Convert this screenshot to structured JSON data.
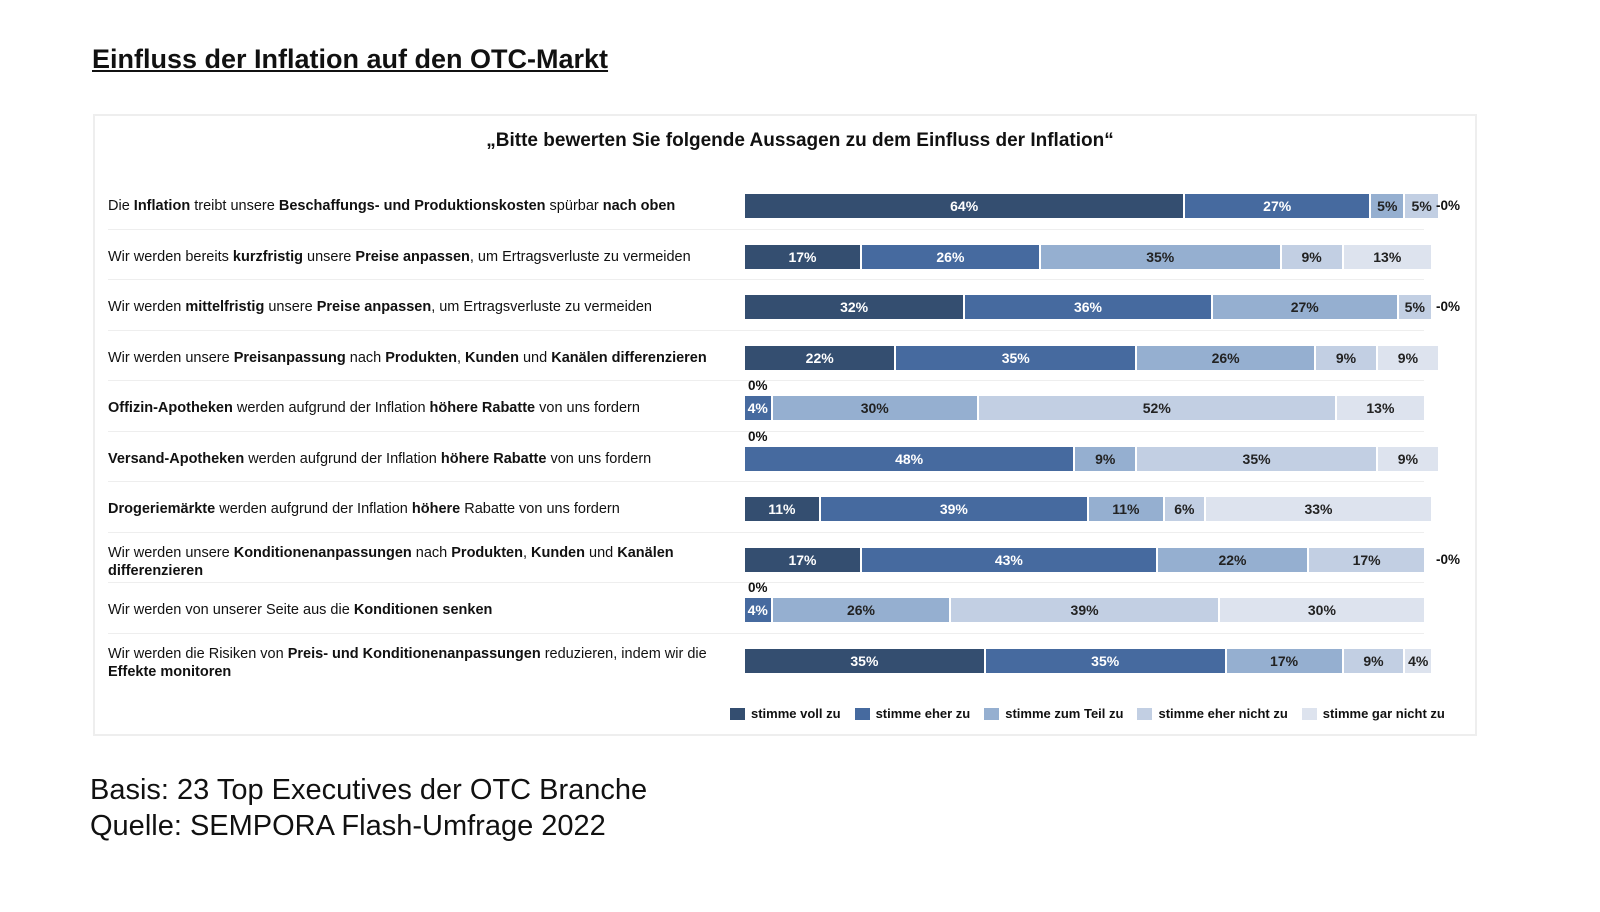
{
  "title": "Einfluss der Inflation auf den OTC-Markt",
  "footer": {
    "basis": "Basis: 23 Top Executives der OTC Branche",
    "source": "Quelle: SEMPORA Flash-Umfrage 2022"
  },
  "chart_data": {
    "type": "bar",
    "stacked": true,
    "orientation": "horizontal",
    "title": "„Bitte bewerten Sie folgende Aussagen zu dem Einfluss der Inflation“",
    "xlim": [
      0,
      100
    ],
    "legend_position": "bottom",
    "colors": [
      "#344e70",
      "#466a9f",
      "#95afd0",
      "#c2cfe3",
      "#dde3ee"
    ],
    "legend": [
      "stimme voll zu",
      "stimme eher zu",
      "stimme zum Teil zu",
      "stimme eher nicht zu",
      "stimme gar nicht zu"
    ],
    "categories": [
      [
        {
          "t": "Die "
        },
        {
          "t": "Inflation",
          "b": 1
        },
        {
          "t": " treibt unsere "
        },
        {
          "t": "Beschaffungs- und Produktionskosten",
          "b": 1
        },
        {
          "t": " spürbar "
        },
        {
          "t": "nach oben",
          "b": 1
        }
      ],
      [
        {
          "t": "Wir werden bereits "
        },
        {
          "t": "kurzfristig",
          "b": 1
        },
        {
          "t": " unsere "
        },
        {
          "t": "Preise anpassen",
          "b": 1
        },
        {
          "t": ", um Ertragsverluste zu vermeiden"
        }
      ],
      [
        {
          "t": "Wir werden "
        },
        {
          "t": "mittelfristig",
          "b": 1
        },
        {
          "t": " unsere "
        },
        {
          "t": "Preise anpassen",
          "b": 1
        },
        {
          "t": ", um Ertragsverluste zu vermeiden"
        }
      ],
      [
        {
          "t": "Wir werden unsere "
        },
        {
          "t": "Preisanpassung",
          "b": 1
        },
        {
          "t": " nach "
        },
        {
          "t": "Produkten",
          "b": 1
        },
        {
          "t": ", "
        },
        {
          "t": "Kunden",
          "b": 1
        },
        {
          "t": " und "
        },
        {
          "t": "Kanälen differenzieren",
          "b": 1
        }
      ],
      [
        {
          "t": "Offizin-Apotheken",
          "b": 1
        },
        {
          "t": " werden aufgrund der Inflation "
        },
        {
          "t": "höhere Rabatte",
          "b": 1
        },
        {
          "t": " von uns fordern"
        }
      ],
      [
        {
          "t": "Versand-Apotheken",
          "b": 1
        },
        {
          "t": " werden aufgrund der Inflation "
        },
        {
          "t": "höhere Rabatte",
          "b": 1
        },
        {
          "t": " von uns fordern"
        }
      ],
      [
        {
          "t": "Drogeriemärkte",
          "b": 1
        },
        {
          "t": " werden aufgrund der Inflation "
        },
        {
          "t": "höhere",
          "b": 1
        },
        {
          "t": " Rabatte von uns fordern"
        }
      ],
      [
        {
          "t": "Wir werden unsere "
        },
        {
          "t": "Konditionenanpassungen",
          "b": 1
        },
        {
          "t": " nach "
        },
        {
          "t": "Produkten",
          "b": 1
        },
        {
          "t": ", "
        },
        {
          "t": "Kunden",
          "b": 1
        },
        {
          "t": " und "
        },
        {
          "t": "Kanälen differenzieren",
          "b": 1
        }
      ],
      [
        {
          "t": "Wir werden von unserer Seite aus die "
        },
        {
          "t": "Konditionen senken",
          "b": 1
        }
      ],
      [
        {
          "t": "Wir werden die Risiken von "
        },
        {
          "t": "Preis- und Konditionenanpassungen",
          "b": 1
        },
        {
          "t": " reduzieren, indem wir die "
        },
        {
          "t": "Effekte monitoren",
          "b": 1
        }
      ]
    ],
    "series_values": [
      [
        64,
        27,
        5,
        5,
        0
      ],
      [
        17,
        26,
        35,
        9,
        13
      ],
      [
        32,
        36,
        27,
        5,
        0
      ],
      [
        22,
        35,
        26,
        9,
        9
      ],
      [
        0,
        4,
        30,
        52,
        13
      ],
      [
        0,
        48,
        9,
        35,
        9
      ],
      [
        11,
        39,
        11,
        6,
        33
      ],
      [
        17,
        43,
        22,
        17,
        0
      ],
      [
        0,
        4,
        26,
        39,
        30
      ],
      [
        35,
        35,
        17,
        9,
        4
      ]
    ]
  }
}
